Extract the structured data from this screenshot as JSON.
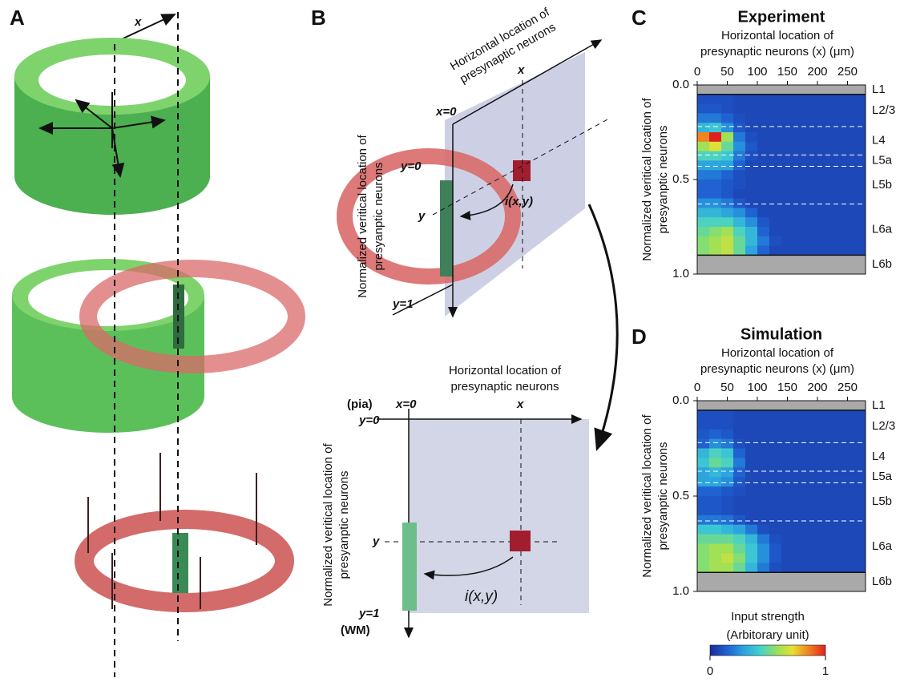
{
  "panel_labels": {
    "A": "A",
    "B": "B",
    "C": "C",
    "D": "D"
  },
  "panel_a": {
    "x_label": "x"
  },
  "panel_b": {
    "top": {
      "x_axis_label": [
        "Horizontal location of",
        "presynaptic neurons"
      ],
      "x_label": "x",
      "x0_label": "x=0",
      "y0_label": "y=0",
      "y_label": "y",
      "y1_label": "y=1",
      "input_label": "i(x,y)",
      "y_axis_label": [
        "Normalized veritical location of",
        "presyanptic neurons"
      ]
    },
    "bottom": {
      "x_axis_label": [
        "Horizontal location of",
        "presynaptic neurons"
      ],
      "pia": "(pia)",
      "y0_label": "y=0",
      "x0_label": "x=0",
      "x_label": "x",
      "y_label": "y",
      "input_label": "i(x,y)",
      "y1_label": "y=1",
      "wm": "(WM)",
      "y_axis_label": [
        "Normalized veritical location of",
        "presyanptic neurons"
      ]
    }
  },
  "heatmaps": [
    {
      "title": "Experiment",
      "x_axis_label": [
        "Horizontal location of",
        "presynaptic neurons  (x) (μm)"
      ],
      "y_axis_label": [
        "Normalized veritical location of",
        "presyanptic neurons"
      ],
      "xlim": [
        0,
        280
      ],
      "xticks": [
        0,
        50,
        100,
        150,
        200,
        250
      ],
      "ylim": [
        0,
        1
      ],
      "yticks": [
        {
          "value": 0,
          "label": "0.0"
        },
        0.5,
        {
          "value": 1,
          "label": "1.0"
        }
      ],
      "layers": [
        "L1",
        "L2/3",
        "L4",
        "L5a",
        "L5b",
        "L6a",
        "L6b"
      ],
      "layer_boundaries": [
        0.05,
        0.22,
        0.37,
        0.43,
        0.63,
        0.9
      ],
      "values": [
        [
          0.1,
          0.1,
          0.1,
          0.08,
          0.08,
          0.08,
          0.08,
          0.08,
          0.08,
          0.08,
          0.08,
          0.08,
          0.08,
          0.08
        ],
        [
          0.12,
          0.12,
          0.1,
          0.08,
          0.08,
          0.08,
          0.08,
          0.08,
          0.08,
          0.08,
          0.08,
          0.08,
          0.08,
          0.08
        ],
        [
          0.2,
          0.2,
          0.15,
          0.1,
          0.08,
          0.08,
          0.08,
          0.08,
          0.08,
          0.08,
          0.08,
          0.08,
          0.08,
          0.08
        ],
        [
          0.35,
          0.4,
          0.25,
          0.12,
          0.08,
          0.08,
          0.08,
          0.08,
          0.08,
          0.08,
          0.08,
          0.08,
          0.08,
          0.08
        ],
        [
          0.85,
          1,
          0.6,
          0.2,
          0.1,
          0.08,
          0.08,
          0.08,
          0.08,
          0.08,
          0.08,
          0.08,
          0.08,
          0.08
        ],
        [
          0.6,
          0.7,
          0.5,
          0.25,
          0.12,
          0.08,
          0.08,
          0.08,
          0.08,
          0.08,
          0.08,
          0.08,
          0.08,
          0.08
        ],
        [
          0.45,
          0.45,
          0.4,
          0.2,
          0.1,
          0.08,
          0.08,
          0.08,
          0.08,
          0.08,
          0.08,
          0.08,
          0.08,
          0.08
        ],
        [
          0.3,
          0.3,
          0.3,
          0.15,
          0.08,
          0.08,
          0.08,
          0.08,
          0.08,
          0.08,
          0.08,
          0.08,
          0.08,
          0.08
        ],
        [
          0.2,
          0.2,
          0.15,
          0.1,
          0.08,
          0.08,
          0.08,
          0.08,
          0.08,
          0.08,
          0.08,
          0.08,
          0.08,
          0.08
        ],
        [
          0.15,
          0.15,
          0.12,
          0.1,
          0.08,
          0.08,
          0.08,
          0.08,
          0.08,
          0.08,
          0.08,
          0.08,
          0.08,
          0.08
        ],
        [
          0.15,
          0.15,
          0.12,
          0.08,
          0.08,
          0.08,
          0.08,
          0.08,
          0.08,
          0.08,
          0.08,
          0.08,
          0.08,
          0.08
        ],
        [
          0.25,
          0.25,
          0.2,
          0.12,
          0.08,
          0.08,
          0.08,
          0.08,
          0.08,
          0.08,
          0.08,
          0.08,
          0.08,
          0.08
        ],
        [
          0.35,
          0.35,
          0.3,
          0.25,
          0.15,
          0.08,
          0.08,
          0.08,
          0.08,
          0.08,
          0.08,
          0.08,
          0.08,
          0.08
        ],
        [
          0.45,
          0.45,
          0.45,
          0.35,
          0.25,
          0.12,
          0.08,
          0.08,
          0.08,
          0.08,
          0.08,
          0.08,
          0.08,
          0.08
        ],
        [
          0.5,
          0.55,
          0.6,
          0.45,
          0.35,
          0.15,
          0.08,
          0.08,
          0.08,
          0.08,
          0.08,
          0.08,
          0.08,
          0.08
        ],
        [
          0.55,
          0.6,
          0.65,
          0.5,
          0.35,
          0.2,
          0.1,
          0.08,
          0.08,
          0.08,
          0.08,
          0.08,
          0.08,
          0.08
        ],
        [
          0.55,
          0.6,
          0.65,
          0.5,
          0.3,
          0.15,
          0.08,
          0.08,
          0.08,
          0.08,
          0.08,
          0.08,
          0.08,
          0.08
        ]
      ]
    },
    {
      "title": "Simulation",
      "x_axis_label": [
        "Horizontal location of",
        "presynaptic neurons  (x) (μm)"
      ],
      "y_axis_label": [
        "Normalized veritical location of",
        "presyanptic neurons"
      ],
      "xlim": [
        0,
        280
      ],
      "xticks": [
        0,
        50,
        100,
        150,
        200,
        250
      ],
      "ylim": [
        0,
        1
      ],
      "yticks": [
        {
          "value": 0,
          "label": "0.0"
        },
        0.5,
        {
          "value": 1,
          "label": "1.0"
        }
      ],
      "layers": [
        "L1",
        "L2/3",
        "L4",
        "L5a",
        "L5b",
        "L6a",
        "L6b"
      ],
      "layer_boundaries": [
        0.05,
        0.22,
        0.37,
        0.43,
        0.63,
        0.9
      ],
      "values": [
        [
          0.1,
          0.1,
          0.1,
          0.08,
          0.08,
          0.08,
          0.08,
          0.08,
          0.08,
          0.08,
          0.08,
          0.08,
          0.08,
          0.08
        ],
        [
          0.1,
          0.1,
          0.1,
          0.08,
          0.08,
          0.08,
          0.08,
          0.08,
          0.08,
          0.08,
          0.08,
          0.08,
          0.08,
          0.08
        ],
        [
          0.12,
          0.15,
          0.12,
          0.08,
          0.08,
          0.08,
          0.08,
          0.08,
          0.08,
          0.08,
          0.08,
          0.08,
          0.08,
          0.08
        ],
        [
          0.15,
          0.25,
          0.2,
          0.1,
          0.08,
          0.08,
          0.08,
          0.08,
          0.08,
          0.08,
          0.08,
          0.08,
          0.08,
          0.08
        ],
        [
          0.35,
          0.45,
          0.4,
          0.15,
          0.08,
          0.08,
          0.08,
          0.08,
          0.08,
          0.08,
          0.08,
          0.08,
          0.08,
          0.08
        ],
        [
          0.4,
          0.5,
          0.45,
          0.2,
          0.08,
          0.08,
          0.08,
          0.08,
          0.08,
          0.08,
          0.08,
          0.08,
          0.08,
          0.08
        ],
        [
          0.3,
          0.35,
          0.3,
          0.15,
          0.08,
          0.08,
          0.08,
          0.08,
          0.08,
          0.08,
          0.08,
          0.08,
          0.08,
          0.08
        ],
        [
          0.3,
          0.3,
          0.25,
          0.12,
          0.08,
          0.08,
          0.08,
          0.08,
          0.08,
          0.08,
          0.08,
          0.08,
          0.08,
          0.08
        ],
        [
          0.15,
          0.15,
          0.12,
          0.1,
          0.08,
          0.08,
          0.08,
          0.08,
          0.08,
          0.08,
          0.08,
          0.08,
          0.08,
          0.08
        ],
        [
          0.12,
          0.12,
          0.1,
          0.08,
          0.08,
          0.08,
          0.08,
          0.08,
          0.08,
          0.08,
          0.08,
          0.08,
          0.08,
          0.08
        ],
        [
          0.12,
          0.12,
          0.1,
          0.08,
          0.08,
          0.08,
          0.08,
          0.08,
          0.08,
          0.08,
          0.08,
          0.08,
          0.08,
          0.08
        ],
        [
          0.2,
          0.2,
          0.18,
          0.12,
          0.08,
          0.08,
          0.08,
          0.08,
          0.08,
          0.08,
          0.08,
          0.08,
          0.08,
          0.08
        ],
        [
          0.4,
          0.4,
          0.35,
          0.3,
          0.2,
          0.1,
          0.08,
          0.08,
          0.08,
          0.08,
          0.08,
          0.08,
          0.08,
          0.08
        ],
        [
          0.5,
          0.5,
          0.5,
          0.45,
          0.35,
          0.2,
          0.1,
          0.08,
          0.08,
          0.08,
          0.08,
          0.08,
          0.08,
          0.08
        ],
        [
          0.55,
          0.6,
          0.6,
          0.5,
          0.4,
          0.25,
          0.12,
          0.08,
          0.08,
          0.08,
          0.08,
          0.08,
          0.08,
          0.08
        ],
        [
          0.55,
          0.6,
          0.65,
          0.55,
          0.4,
          0.25,
          0.12,
          0.08,
          0.08,
          0.08,
          0.08,
          0.08,
          0.08,
          0.08
        ],
        [
          0.55,
          0.6,
          0.6,
          0.5,
          0.35,
          0.2,
          0.1,
          0.08,
          0.08,
          0.08,
          0.08,
          0.08,
          0.08,
          0.08
        ]
      ]
    }
  ],
  "colorbar": {
    "title": "Input strength",
    "subtitle": "(Arbitorary unit)",
    "ticks": [
      0,
      1
    ],
    "colormap": [
      "#1a2a9a",
      "#1f5fd0",
      "#2aa0e0",
      "#40d0d0",
      "#90e060",
      "#e8e030",
      "#f08020",
      "#e02020"
    ]
  }
}
